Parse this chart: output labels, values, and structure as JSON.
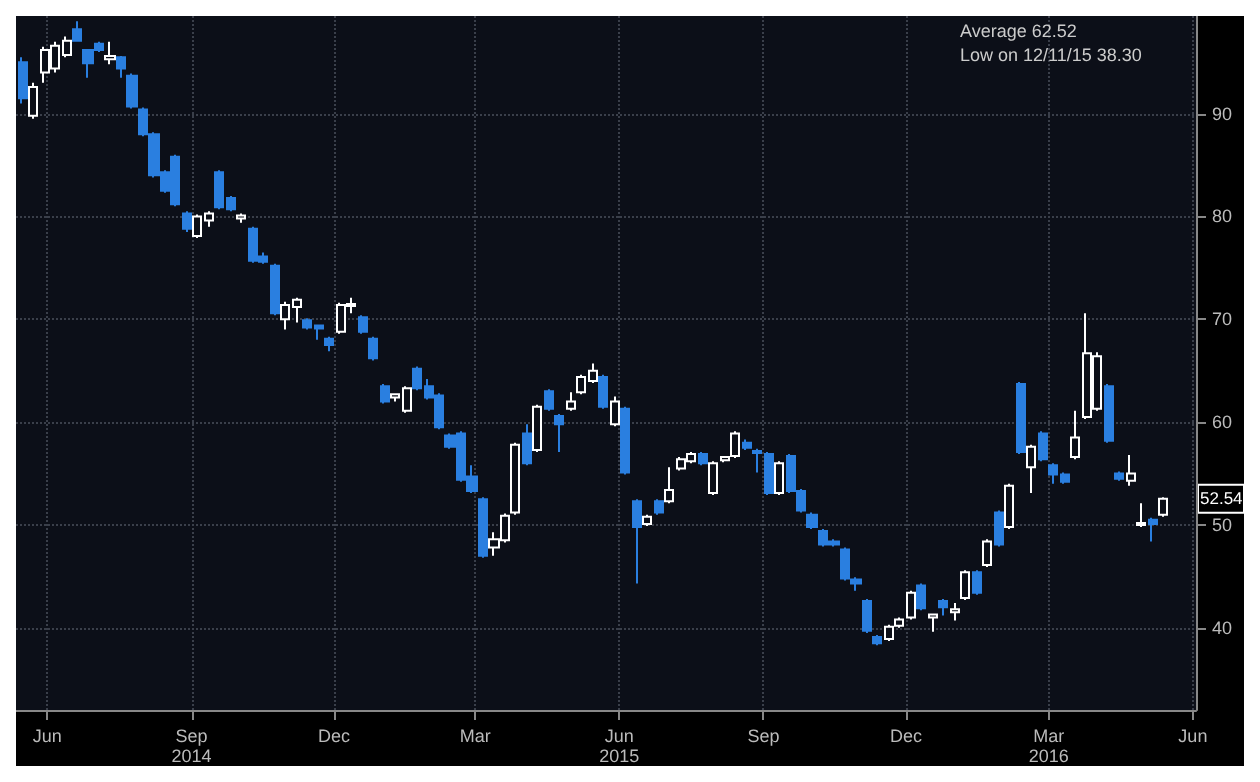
{
  "chart_data": {
    "type": "candlestick",
    "colors": [
      "#2a7fe0",
      "#ffffff",
      "#ffffff",
      "#ffffff",
      "#ffffff",
      "#2a7fe0",
      "#2a7fe0",
      "#2a7fe0",
      "#ffffff",
      "#2a7fe0",
      "#2a7fe0",
      "#2a7fe0",
      "#2a7fe0",
      "#2a7fe0",
      "#2a7fe0",
      "#2a7fe0",
      "#ffffff",
      "#ffffff",
      "#2a7fe0",
      "#2a7fe0",
      "#ffffff",
      "#2a7fe0",
      "#2a7fe0",
      "#2a7fe0",
      "#ffffff",
      "#ffffff",
      "#2a7fe0",
      "#2a7fe0",
      "#2a7fe0",
      "#ffffff",
      "#ffffff",
      "#2a7fe0",
      "#2a7fe0",
      "#2a7fe0",
      "#ffffff",
      "#ffffff",
      "#2a7fe0",
      "#2a7fe0",
      "#2a7fe0",
      "#2a7fe0",
      "#2a7fe0",
      "#2a7fe0",
      "#2a7fe0",
      "#ffffff",
      "#ffffff",
      "#ffffff",
      "#2a7fe0",
      "#ffffff",
      "#2a7fe0",
      "#2a7fe0",
      "#ffffff",
      "#ffffff",
      "#ffffff",
      "#2a7fe0",
      "#ffffff",
      "#2a7fe0",
      "#2a7fe0",
      "#ffffff",
      "#2a7fe0",
      "#ffffff",
      "#ffffff",
      "#ffffff",
      "#2a7fe0",
      "#ffffff",
      "#ffffff",
      "#ffffff",
      "#2a7fe0",
      "#2a7fe0",
      "#2a7fe0",
      "#ffffff",
      "#2a7fe0",
      "#2a7fe0",
      "#2a7fe0",
      "#2a7fe0",
      "#2a7fe0",
      "#2a7fe0",
      "#2a7fe0",
      "#2a7fe0",
      "#2a7fe0",
      "#ffffff",
      "#ffffff",
      "#ffffff",
      "#2a7fe0",
      "#ffffff",
      "#2a7fe0",
      "#ffffff",
      "#ffffff",
      "#2a7fe0",
      "#ffffff",
      "#2a7fe0",
      "#ffffff",
      "#2a7fe0",
      "#ffffff",
      "#2a7fe0",
      "#2a7fe0",
      "#2a7fe0",
      "#ffffff",
      "#ffffff",
      "#ffffff",
      "#2a7fe0",
      "#2a7fe0",
      "#ffffff",
      "#ffffff",
      "#2a7fe0",
      "#ffffff"
    ],
    "x": [
      "2014-05-16",
      "2014-05-23",
      "2014-05-30",
      "2014-06-06",
      "2014-06-13",
      "2014-06-20",
      "2014-06-27",
      "2014-07-04",
      "2014-07-11",
      "2014-07-18",
      "2014-07-25",
      "2014-08-01",
      "2014-08-08",
      "2014-08-15",
      "2014-08-22",
      "2014-08-29",
      "2014-09-05",
      "2014-09-12",
      "2014-09-19",
      "2014-09-26",
      "2014-10-03",
      "2014-10-10",
      "2014-10-17",
      "2014-10-24",
      "2014-10-31",
      "2014-11-07",
      "2014-11-14",
      "2014-11-21",
      "2014-11-28",
      "2014-12-05",
      "2014-12-12",
      "2014-12-19",
      "2014-12-26",
      "2015-01-02",
      "2015-01-09",
      "2015-01-16",
      "2015-01-23",
      "2015-01-30",
      "2015-02-06",
      "2015-02-13",
      "2015-02-20",
      "2015-02-27",
      "2015-03-06",
      "2015-03-13",
      "2015-03-20",
      "2015-03-27",
      "2015-04-03",
      "2015-04-10",
      "2015-04-17",
      "2015-04-24",
      "2015-05-01",
      "2015-05-08",
      "2015-05-15",
      "2015-05-22",
      "2015-05-29",
      "2015-06-05",
      "2015-06-12",
      "2015-06-19",
      "2015-06-26",
      "2015-07-03",
      "2015-07-10",
      "2015-07-17",
      "2015-07-24",
      "2015-07-31",
      "2015-08-07",
      "2015-08-14",
      "2015-08-21",
      "2015-08-28",
      "2015-09-04",
      "2015-09-11",
      "2015-09-18",
      "2015-09-25",
      "2015-10-02",
      "2015-10-09",
      "2015-10-16",
      "2015-10-23",
      "2015-10-30",
      "2015-11-06",
      "2015-11-13",
      "2015-11-20",
      "2015-11-27",
      "2015-12-04",
      "2015-12-11",
      "2015-12-18",
      "2015-12-25",
      "2016-01-01",
      "2016-01-08",
      "2016-01-15",
      "2016-01-22",
      "2016-01-29",
      "2016-02-05",
      "2016-02-12",
      "2016-02-19",
      "2016-02-26",
      "2016-03-04",
      "2016-03-11",
      "2016-03-18",
      "2016-03-25",
      "2016-04-01",
      "2016-04-08",
      "2016-04-15",
      "2016-04-22",
      "2016-04-29",
      "2016-05-06",
      "2016-05-13"
    ],
    "ohlc": [
      [
        95,
        95.5,
        91,
        91.5
      ],
      [
        89.8,
        93,
        89.5,
        92.6
      ],
      [
        94,
        96.5,
        93,
        96.2
      ],
      [
        94.4,
        97,
        94,
        96.6
      ],
      [
        95.7,
        97.5,
        95.5,
        97.1
      ],
      [
        98.2,
        99,
        97,
        97.1
      ],
      [
        96.2,
        96.3,
        93.5,
        94.9
      ],
      [
        96.8,
        97,
        96,
        96.2
      ],
      [
        95.3,
        97,
        94.8,
        95.6
      ],
      [
        95.5,
        95.6,
        93.5,
        94.4
      ],
      [
        93.7,
        93.9,
        90.5,
        90.7
      ],
      [
        90.4,
        90.6,
        87.8,
        88
      ],
      [
        88,
        88.2,
        83.8,
        84
      ],
      [
        84.3,
        84.5,
        82.3,
        82.5
      ],
      [
        85.8,
        86,
        81,
        81.2
      ],
      [
        80.3,
        80.5,
        78.5,
        78.8
      ],
      [
        78.1,
        80.2,
        77.9,
        80
      ],
      [
        79.6,
        80.5,
        79,
        80.3
      ],
      [
        84.3,
        84.5,
        80.7,
        80.9
      ],
      [
        81.8,
        82,
        80.5,
        80.7
      ],
      [
        79.8,
        80.3,
        79.4,
        80.1
      ],
      [
        78.8,
        79,
        75.5,
        75.7
      ],
      [
        76.1,
        76.5,
        75.4,
        75.6
      ],
      [
        75.2,
        75.4,
        70.4,
        70.6
      ],
      [
        70,
        71.7,
        69,
        71.4
      ],
      [
        71.2,
        72.1,
        69.7,
        71.9
      ],
      [
        69.9,
        70.1,
        69,
        69.2
      ],
      [
        69.4,
        69.5,
        68,
        69.1
      ],
      [
        68.1,
        68.3,
        66.9,
        67.5
      ],
      [
        68.8,
        71.6,
        68.6,
        71.4
      ],
      [
        71.3,
        72.1,
        70.6,
        71.5
      ],
      [
        70.2,
        70.4,
        68.6,
        68.8
      ],
      [
        68.1,
        68.3,
        66,
        66.2
      ],
      [
        63.5,
        63.7,
        61.8,
        62
      ],
      [
        62.4,
        62.8,
        62,
        62.7
      ],
      [
        61.1,
        63.5,
        60.9,
        63.3
      ],
      [
        65.2,
        65.4,
        63.1,
        63.3
      ],
      [
        63.5,
        64.2,
        62.2,
        62.4
      ],
      [
        62.6,
        62.8,
        59.3,
        59.5
      ],
      [
        58.7,
        58.9,
        57.4,
        57.6
      ],
      [
        58.9,
        59.1,
        54.2,
        54.4
      ],
      [
        54.7,
        55.8,
        53.1,
        53.3
      ],
      [
        52.5,
        52.7,
        46.8,
        47
      ],
      [
        47.8,
        49.3,
        47,
        48.6
      ],
      [
        48.5,
        51.1,
        48.3,
        50.9
      ],
      [
        51.2,
        58,
        51,
        57.8
      ],
      [
        58.9,
        59.8,
        55.8,
        56
      ],
      [
        57.3,
        61.7,
        57.1,
        61.5
      ],
      [
        63,
        63.2,
        61.1,
        61.3
      ],
      [
        60.6,
        60.8,
        57.1,
        59.8
      ],
      [
        61.3,
        62.9,
        61.1,
        62
      ],
      [
        62.9,
        64.6,
        62.7,
        64.4
      ],
      [
        64,
        65.7,
        63.8,
        65
      ],
      [
        64.4,
        64.6,
        61.3,
        61.5
      ],
      [
        59.8,
        62.5,
        59.6,
        62
      ],
      [
        61.3,
        61.5,
        54.9,
        55.1
      ],
      [
        52.3,
        52.5,
        44.3,
        49.8
      ],
      [
        50.1,
        51,
        49.9,
        50.8
      ],
      [
        52.3,
        52.5,
        51,
        51.2
      ],
      [
        52.3,
        55.6,
        52.1,
        53.4
      ],
      [
        55.5,
        56.6,
        55.3,
        56.4
      ],
      [
        56.2,
        57.1,
        56,
        56.9
      ],
      [
        56.9,
        57.1,
        55.8,
        56
      ],
      [
        53.1,
        56.2,
        52.9,
        56
      ],
      [
        56.3,
        56.7,
        56.1,
        56.6
      ],
      [
        56.7,
        59.1,
        56.5,
        58.9
      ],
      [
        58,
        58.3,
        57.3,
        57.5
      ],
      [
        57.2,
        57.4,
        55.1,
        57
      ],
      [
        56.9,
        57.1,
        52.9,
        53.1
      ],
      [
        53.1,
        56.2,
        52.9,
        56
      ],
      [
        56.7,
        56.9,
        53.1,
        53.3
      ],
      [
        53.3,
        53.5,
        51.2,
        51.4
      ],
      [
        51,
        51.2,
        49.6,
        49.8
      ],
      [
        49.4,
        49.6,
        47.9,
        48.1
      ],
      [
        48.4,
        48.6,
        47.9,
        48.1
      ],
      [
        47.6,
        47.8,
        44.6,
        44.8
      ],
      [
        44.7,
        44.9,
        43.6,
        44.3
      ],
      [
        42.6,
        42.8,
        39.5,
        39.7
      ],
      [
        39.1,
        39.3,
        38.3,
        38.5
      ],
      [
        38.9,
        40.3,
        38.7,
        40.1
      ],
      [
        40.2,
        41,
        40,
        40.8
      ],
      [
        41,
        43.6,
        40.8,
        43.4
      ],
      [
        44.1,
        44.3,
        41.7,
        41.9
      ],
      [
        41,
        41.3,
        39.6,
        41.3
      ],
      [
        42.6,
        42.8,
        41.2,
        42
      ],
      [
        41.5,
        42.4,
        40.7,
        41.8
      ],
      [
        42.9,
        45.6,
        42.7,
        45.4
      ],
      [
        45.4,
        45.6,
        43.2,
        43.4
      ],
      [
        46.1,
        48.6,
        45.9,
        48.4
      ],
      [
        51.2,
        51.4,
        47.9,
        48.1
      ],
      [
        49.8,
        54,
        49.6,
        53.8
      ],
      [
        63.7,
        63.9,
        56.9,
        57.1
      ],
      [
        55.6,
        57.8,
        53.1,
        57.6
      ],
      [
        58.9,
        59.1,
        56.2,
        56.4
      ],
      [
        55.8,
        56,
        54,
        54.9
      ],
      [
        54.9,
        55.1,
        54,
        54.2
      ],
      [
        56.6,
        61.1,
        56.4,
        58.5
      ],
      [
        60.5,
        70.6,
        60.3,
        66.7
      ],
      [
        61.3,
        66.8,
        61.1,
        66.4
      ],
      [
        63.5,
        63.7,
        58,
        58.2
      ],
      [
        55,
        55.2,
        54.3,
        54.5
      ],
      [
        54.3,
        56.8,
        53.8,
        55
      ],
      [
        50,
        52.1,
        49.8,
        50.2
      ],
      [
        50.5,
        50.7,
        48.4,
        50.1
      ],
      [
        51,
        52.7,
        50.8,
        52.54
      ]
    ],
    "xlim": [
      "2014-05-12",
      "2016-06-03"
    ],
    "xticks": [
      {
        "value": "2014-06-01",
        "label": "Jun"
      },
      {
        "value": "2014-09-01",
        "label": "Sep\n2014"
      },
      {
        "value": "2014-12-01",
        "label": "Dec"
      },
      {
        "value": "2015-03-01",
        "label": "Mar"
      },
      {
        "value": "2015-06-01",
        "label": "Jun\n2015"
      },
      {
        "value": "2015-09-01",
        "label": "Sep"
      },
      {
        "value": "2015-12-01",
        "label": "Dec"
      },
      {
        "value": "2016-03-01",
        "label": "Mar\n2016"
      },
      {
        "value": "2016-06-01",
        "label": "Jun"
      }
    ],
    "ylim": [
      32,
      99.5
    ],
    "yticks": [
      40,
      50,
      60,
      70,
      80,
      90
    ],
    "grid": true,
    "annotations": [
      "Average 62.52",
      "Low on 12/11/15 38.30",
      {
        "text": "52.54",
        "x": "2016-05-13",
        "y": 52.54
      }
    ]
  }
}
